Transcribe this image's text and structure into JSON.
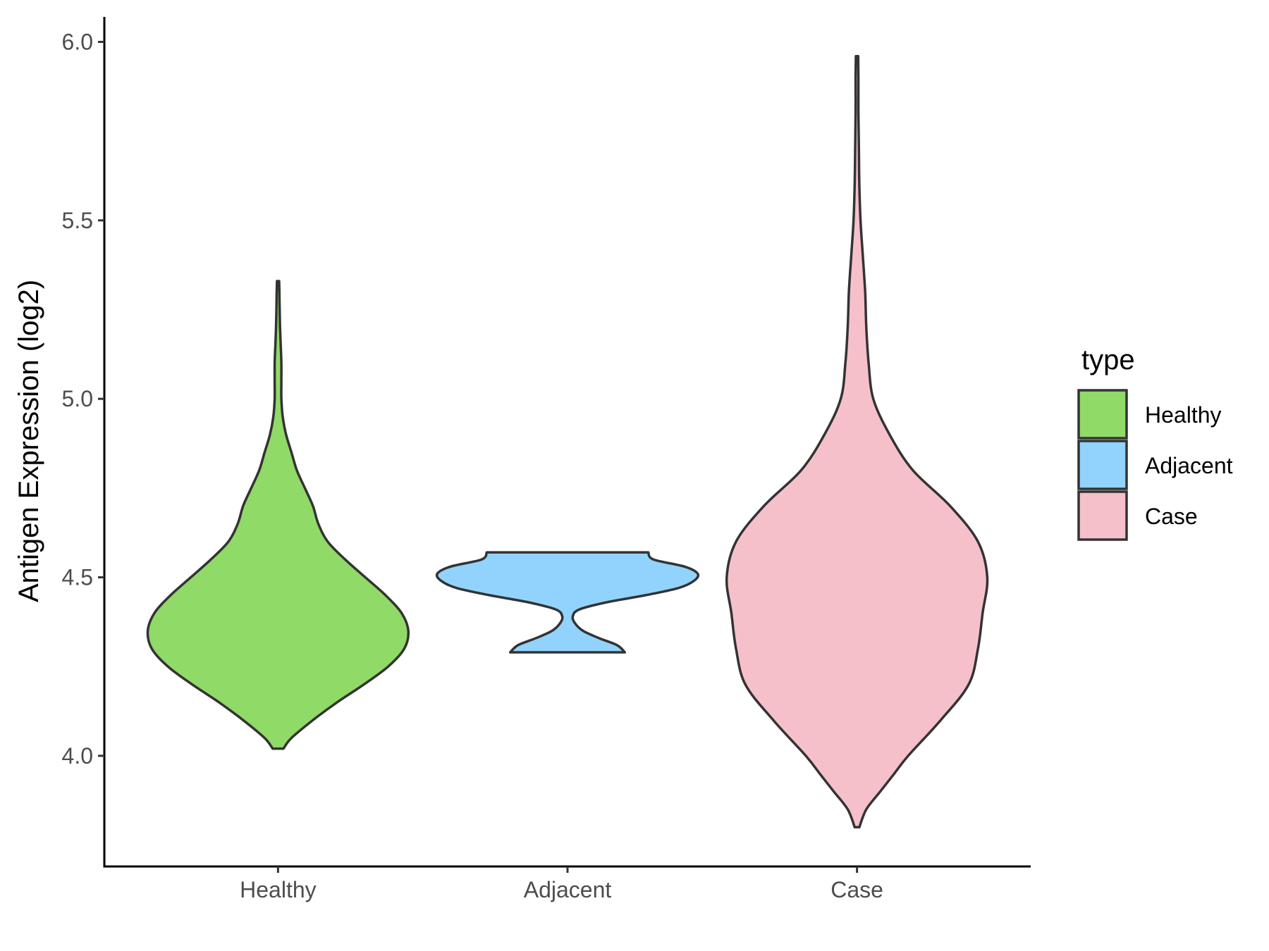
{
  "chart_data": {
    "type": "violin",
    "title": "",
    "xlabel": "",
    "ylabel": "Antigen Expression (log2)",
    "ylim": [
      3.69,
      6.07
    ],
    "yticks": [
      4.0,
      4.5,
      5.0,
      5.5,
      6.0
    ],
    "categories": [
      "Healthy",
      "Adjacent",
      "Case"
    ],
    "legend": {
      "title": "type",
      "position": "right",
      "entries": [
        "Healthy",
        "Adjacent",
        "Case"
      ]
    },
    "grid": false,
    "series": [
      {
        "name": "Healthy",
        "color": "#90DA67",
        "min": 4.02,
        "max": 5.33,
        "density": [
          [
            4.02,
            0.04
          ],
          [
            4.05,
            0.1
          ],
          [
            4.1,
            0.26
          ],
          [
            4.15,
            0.44
          ],
          [
            4.2,
            0.64
          ],
          [
            4.25,
            0.82
          ],
          [
            4.3,
            0.94
          ],
          [
            4.35,
            0.97
          ],
          [
            4.4,
            0.92
          ],
          [
            4.45,
            0.8
          ],
          [
            4.5,
            0.65
          ],
          [
            4.55,
            0.5
          ],
          [
            4.6,
            0.37
          ],
          [
            4.65,
            0.3
          ],
          [
            4.7,
            0.26
          ],
          [
            4.75,
            0.2
          ],
          [
            4.8,
            0.14
          ],
          [
            4.85,
            0.1
          ],
          [
            4.9,
            0.06
          ],
          [
            4.95,
            0.035
          ],
          [
            5.0,
            0.025
          ],
          [
            5.05,
            0.025
          ],
          [
            5.1,
            0.025
          ],
          [
            5.15,
            0.02
          ],
          [
            5.2,
            0.015
          ],
          [
            5.25,
            0.012
          ],
          [
            5.3,
            0.01
          ],
          [
            5.33,
            0.008
          ]
        ]
      },
      {
        "name": "Adjacent",
        "color": "#92D3FE",
        "min": 4.29,
        "max": 4.57,
        "density": [
          [
            4.29,
            0.44
          ],
          [
            4.31,
            0.38
          ],
          [
            4.33,
            0.24
          ],
          [
            4.35,
            0.12
          ],
          [
            4.37,
            0.06
          ],
          [
            4.39,
            0.04
          ],
          [
            4.41,
            0.09
          ],
          [
            4.43,
            0.3
          ],
          [
            4.45,
            0.6
          ],
          [
            4.47,
            0.85
          ],
          [
            4.49,
            0.97
          ],
          [
            4.51,
            1.0
          ],
          [
            4.53,
            0.9
          ],
          [
            4.55,
            0.66
          ],
          [
            4.57,
            0.62
          ]
        ]
      },
      {
        "name": "Case",
        "color": "#F6C0CB",
        "min": 3.8,
        "max": 5.96,
        "density": [
          [
            3.8,
            0.01
          ],
          [
            3.85,
            0.04
          ],
          [
            3.9,
            0.1
          ],
          [
            3.95,
            0.16
          ],
          [
            4.0,
            0.22
          ],
          [
            4.1,
            0.36
          ],
          [
            4.2,
            0.48
          ],
          [
            4.3,
            0.52
          ],
          [
            4.4,
            0.54
          ],
          [
            4.5,
            0.56
          ],
          [
            4.6,
            0.52
          ],
          [
            4.7,
            0.4
          ],
          [
            4.8,
            0.24
          ],
          [
            4.9,
            0.14
          ],
          [
            5.0,
            0.07
          ],
          [
            5.1,
            0.05
          ],
          [
            5.2,
            0.04
          ],
          [
            5.3,
            0.035
          ],
          [
            5.4,
            0.025
          ],
          [
            5.5,
            0.015
          ],
          [
            5.6,
            0.01
          ],
          [
            5.7,
            0.008
          ],
          [
            5.8,
            0.006
          ],
          [
            5.9,
            0.006
          ],
          [
            5.96,
            0.005
          ]
        ]
      }
    ]
  }
}
